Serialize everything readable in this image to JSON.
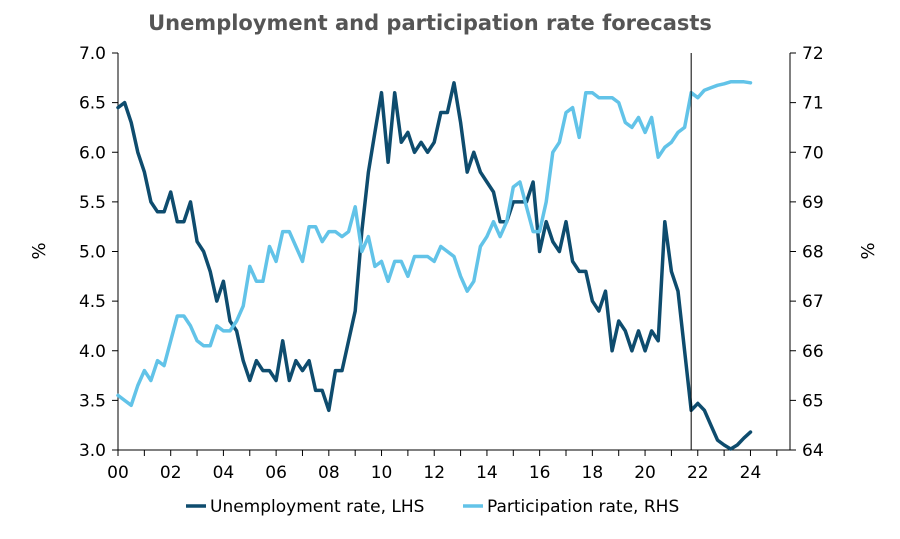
{
  "chart_data": {
    "type": "line",
    "title": "Unemployment and participation rate forecasts",
    "xlabel": "",
    "ylabel_left": "%",
    "ylabel_right": "%",
    "x_ticks": [
      "00",
      "02",
      "04",
      "06",
      "08",
      "10",
      "12",
      "14",
      "16",
      "18",
      "20",
      "22",
      "24"
    ],
    "x_range": [
      2000,
      2025.5
    ],
    "y_left": {
      "range": [
        3.0,
        7.0
      ],
      "ticks": [
        "3.0",
        "3.5",
        "4.0",
        "4.5",
        "5.0",
        "5.5",
        "6.0",
        "6.5",
        "7.0"
      ]
    },
    "y_right": {
      "range": [
        64,
        72
      ],
      "ticks": [
        "64",
        "65",
        "66",
        "67",
        "68",
        "69",
        "70",
        "71",
        "72"
      ]
    },
    "forecast_line_x": 2021.75,
    "legend_position": "bottom",
    "series": [
      {
        "name": "Unemployment rate, LHS",
        "axis": "left",
        "color": "#0e4c6e",
        "points": [
          [
            2000.0,
            6.45
          ],
          [
            2000.25,
            6.5
          ],
          [
            2000.5,
            6.3
          ],
          [
            2000.75,
            6.0
          ],
          [
            2001.0,
            5.8
          ],
          [
            2001.25,
            5.5
          ],
          [
            2001.5,
            5.4
          ],
          [
            2001.75,
            5.4
          ],
          [
            2002.0,
            5.6
          ],
          [
            2002.25,
            5.3
          ],
          [
            2002.5,
            5.3
          ],
          [
            2002.75,
            5.5
          ],
          [
            2003.0,
            5.1
          ],
          [
            2003.25,
            5.0
          ],
          [
            2003.5,
            4.8
          ],
          [
            2003.75,
            4.5
          ],
          [
            2004.0,
            4.7
          ],
          [
            2004.25,
            4.3
          ],
          [
            2004.5,
            4.2
          ],
          [
            2004.75,
            3.9
          ],
          [
            2005.0,
            3.7
          ],
          [
            2005.25,
            3.9
          ],
          [
            2005.5,
            3.8
          ],
          [
            2005.75,
            3.8
          ],
          [
            2006.0,
            3.7
          ],
          [
            2006.25,
            4.1
          ],
          [
            2006.5,
            3.7
          ],
          [
            2006.75,
            3.9
          ],
          [
            2007.0,
            3.8
          ],
          [
            2007.25,
            3.9
          ],
          [
            2007.5,
            3.6
          ],
          [
            2007.75,
            3.6
          ],
          [
            2008.0,
            3.4
          ],
          [
            2008.25,
            3.8
          ],
          [
            2008.5,
            3.8
          ],
          [
            2008.75,
            4.1
          ],
          [
            2009.0,
            4.4
          ],
          [
            2009.25,
            5.2
          ],
          [
            2009.5,
            5.8
          ],
          [
            2009.75,
            6.2
          ],
          [
            2010.0,
            6.6
          ],
          [
            2010.25,
            5.9
          ],
          [
            2010.5,
            6.6
          ],
          [
            2010.75,
            6.1
          ],
          [
            2011.0,
            6.2
          ],
          [
            2011.25,
            6.0
          ],
          [
            2011.5,
            6.1
          ],
          [
            2011.75,
            6.0
          ],
          [
            2012.0,
            6.1
          ],
          [
            2012.25,
            6.4
          ],
          [
            2012.5,
            6.4
          ],
          [
            2012.75,
            6.7
          ],
          [
            2013.0,
            6.3
          ],
          [
            2013.25,
            5.8
          ],
          [
            2013.5,
            6.0
          ],
          [
            2013.75,
            5.8
          ],
          [
            2014.0,
            5.7
          ],
          [
            2014.25,
            5.6
          ],
          [
            2014.5,
            5.3
          ],
          [
            2014.75,
            5.3
          ],
          [
            2015.0,
            5.5
          ],
          [
            2015.25,
            5.5
          ],
          [
            2015.5,
            5.5
          ],
          [
            2015.75,
            5.7
          ],
          [
            2016.0,
            5.0
          ],
          [
            2016.25,
            5.3
          ],
          [
            2016.5,
            5.1
          ],
          [
            2016.75,
            5.0
          ],
          [
            2017.0,
            5.3
          ],
          [
            2017.25,
            4.9
          ],
          [
            2017.5,
            4.8
          ],
          [
            2017.75,
            4.8
          ],
          [
            2018.0,
            4.5
          ],
          [
            2018.25,
            4.4
          ],
          [
            2018.5,
            4.6
          ],
          [
            2018.75,
            4.0
          ],
          [
            2019.0,
            4.3
          ],
          [
            2019.25,
            4.2
          ],
          [
            2019.5,
            4.0
          ],
          [
            2019.75,
            4.2
          ],
          [
            2020.0,
            4.0
          ],
          [
            2020.25,
            4.2
          ],
          [
            2020.5,
            4.1
          ],
          [
            2020.75,
            5.3
          ],
          [
            2021.0,
            4.8
          ],
          [
            2021.25,
            4.6
          ],
          [
            2021.5,
            4.0
          ],
          [
            2021.75,
            3.4
          ],
          [
            2022.0,
            3.47
          ],
          [
            2022.25,
            3.4
          ],
          [
            2022.5,
            3.25
          ],
          [
            2022.75,
            3.1
          ],
          [
            2023.0,
            3.05
          ],
          [
            2023.25,
            3.01
          ],
          [
            2023.5,
            3.05
          ],
          [
            2023.75,
            3.12
          ],
          [
            2024.0,
            3.18
          ]
        ]
      },
      {
        "name": "Participation rate, RHS",
        "axis": "right",
        "color": "#62c3e8",
        "points": [
          [
            2000.0,
            65.1
          ],
          [
            2000.25,
            65.0
          ],
          [
            2000.5,
            64.9
          ],
          [
            2000.75,
            65.3
          ],
          [
            2001.0,
            65.6
          ],
          [
            2001.25,
            65.4
          ],
          [
            2001.5,
            65.8
          ],
          [
            2001.75,
            65.7
          ],
          [
            2002.0,
            66.2
          ],
          [
            2002.25,
            66.7
          ],
          [
            2002.5,
            66.7
          ],
          [
            2002.75,
            66.5
          ],
          [
            2003.0,
            66.2
          ],
          [
            2003.25,
            66.1
          ],
          [
            2003.5,
            66.1
          ],
          [
            2003.75,
            66.5
          ],
          [
            2004.0,
            66.4
          ],
          [
            2004.25,
            66.4
          ],
          [
            2004.5,
            66.6
          ],
          [
            2004.75,
            66.9
          ],
          [
            2005.0,
            67.7
          ],
          [
            2005.25,
            67.4
          ],
          [
            2005.5,
            67.4
          ],
          [
            2005.75,
            68.1
          ],
          [
            2006.0,
            67.8
          ],
          [
            2006.25,
            68.4
          ],
          [
            2006.5,
            68.4
          ],
          [
            2006.75,
            68.1
          ],
          [
            2007.0,
            67.8
          ],
          [
            2007.25,
            68.5
          ],
          [
            2007.5,
            68.5
          ],
          [
            2007.75,
            68.2
          ],
          [
            2008.0,
            68.4
          ],
          [
            2008.25,
            68.4
          ],
          [
            2008.5,
            68.3
          ],
          [
            2008.75,
            68.4
          ],
          [
            2009.0,
            68.9
          ],
          [
            2009.25,
            68.0
          ],
          [
            2009.5,
            68.3
          ],
          [
            2009.75,
            67.7
          ],
          [
            2010.0,
            67.8
          ],
          [
            2010.25,
            67.4
          ],
          [
            2010.5,
            67.8
          ],
          [
            2010.75,
            67.8
          ],
          [
            2011.0,
            67.5
          ],
          [
            2011.25,
            67.9
          ],
          [
            2011.5,
            67.9
          ],
          [
            2011.75,
            67.9
          ],
          [
            2012.0,
            67.8
          ],
          [
            2012.25,
            68.1
          ],
          [
            2012.5,
            68.0
          ],
          [
            2012.75,
            67.9
          ],
          [
            2013.0,
            67.5
          ],
          [
            2013.25,
            67.2
          ],
          [
            2013.5,
            67.4
          ],
          [
            2013.75,
            68.1
          ],
          [
            2014.0,
            68.3
          ],
          [
            2014.25,
            68.6
          ],
          [
            2014.5,
            68.3
          ],
          [
            2014.75,
            68.6
          ],
          [
            2015.0,
            69.3
          ],
          [
            2015.25,
            69.4
          ],
          [
            2015.5,
            68.9
          ],
          [
            2015.75,
            68.4
          ],
          [
            2016.0,
            68.4
          ],
          [
            2016.25,
            69.0
          ],
          [
            2016.5,
            70.0
          ],
          [
            2016.75,
            70.2
          ],
          [
            2017.0,
            70.8
          ],
          [
            2017.25,
            70.9
          ],
          [
            2017.5,
            70.3
          ],
          [
            2017.75,
            71.2
          ],
          [
            2018.0,
            71.2
          ],
          [
            2018.25,
            71.1
          ],
          [
            2018.5,
            71.1
          ],
          [
            2018.75,
            71.1
          ],
          [
            2019.0,
            71.0
          ],
          [
            2019.25,
            70.6
          ],
          [
            2019.5,
            70.5
          ],
          [
            2019.75,
            70.7
          ],
          [
            2020.0,
            70.4
          ],
          [
            2020.25,
            70.7
          ],
          [
            2020.5,
            69.9
          ],
          [
            2020.75,
            70.1
          ],
          [
            2021.0,
            70.2
          ],
          [
            2021.25,
            70.4
          ],
          [
            2021.5,
            70.5
          ],
          [
            2021.75,
            71.2
          ],
          [
            2022.0,
            71.1
          ],
          [
            2022.25,
            71.25
          ],
          [
            2022.5,
            71.3
          ],
          [
            2022.75,
            71.35
          ],
          [
            2023.0,
            71.38
          ],
          [
            2023.25,
            71.42
          ],
          [
            2023.5,
            71.42
          ],
          [
            2023.75,
            71.42
          ],
          [
            2024.0,
            71.4
          ]
        ]
      }
    ]
  }
}
